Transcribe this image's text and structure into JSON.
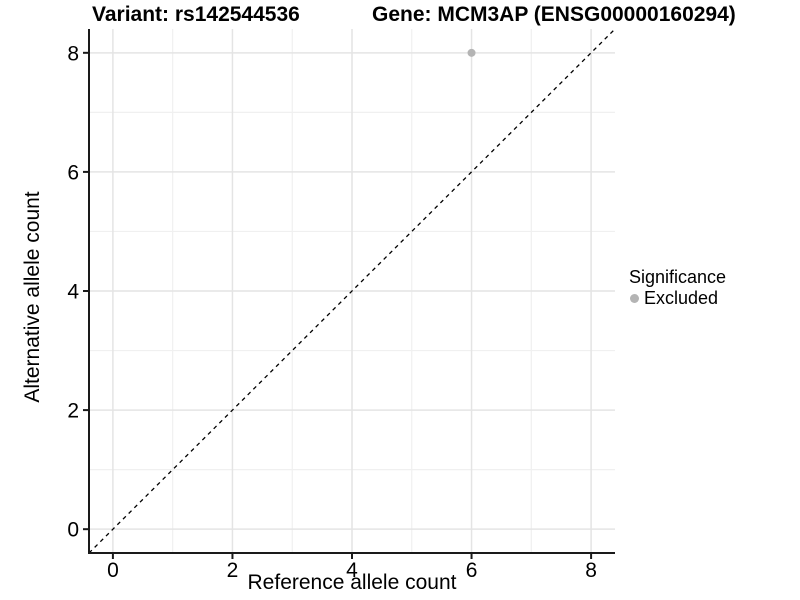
{
  "chart_data": {
    "type": "scatter",
    "title_left": "Variant: rs142544536",
    "title_right": "Gene: MCM3AP (ENSG00000160294)",
    "xlabel": "Reference allele count",
    "ylabel": "Alternative allele count",
    "xlim": [
      -0.4,
      8.4
    ],
    "ylim": [
      -0.4,
      8.4
    ],
    "x_ticks": [
      0,
      2,
      4,
      6,
      8
    ],
    "y_ticks": [
      0,
      2,
      4,
      6,
      8
    ],
    "x_minor_ticks": [
      1,
      3,
      5,
      7
    ],
    "y_minor_ticks": [
      1,
      3,
      5,
      7
    ],
    "grid": true,
    "reference_line": {
      "kind": "identity",
      "style": "dashed",
      "color": "#000000"
    },
    "series": [
      {
        "name": "Excluded",
        "color": "#b4b4b4",
        "point_radius": 4,
        "points": [
          {
            "x": 6,
            "y": 8
          }
        ]
      }
    ],
    "legend": {
      "title": "Significance",
      "position": "right",
      "items": [
        {
          "label": "Excluded",
          "color": "#b4b4b4"
        }
      ]
    },
    "style_colors": {
      "grid_major": "#e4e4e4",
      "grid_minor": "#f0f0f0",
      "axis_line": "#1a1a1a",
      "tick_text": "#000000"
    }
  }
}
